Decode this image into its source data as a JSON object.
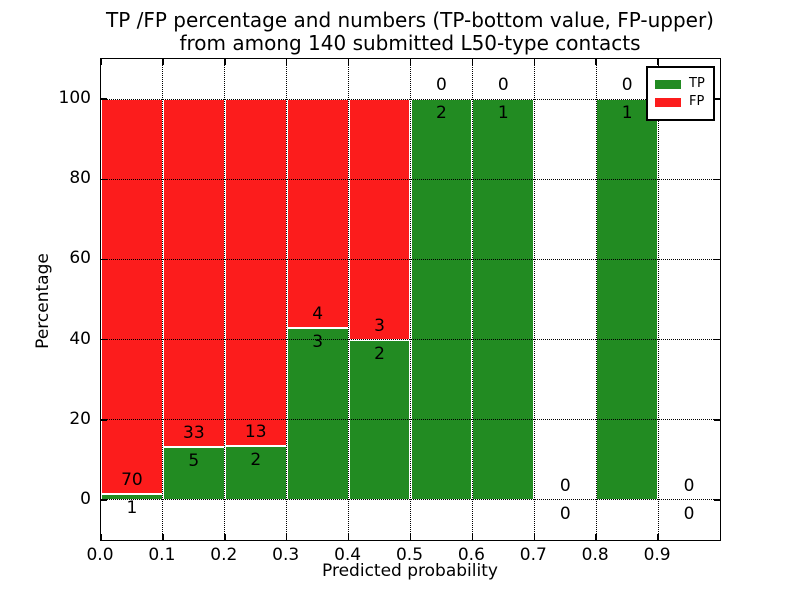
{
  "chart_data": {
    "type": "bar",
    "stacked": true,
    "title_line1": "TP /FP percentage and numbers (TP-bottom value, FP-upper)",
    "title_line2": "from among 140 submitted L50-type contacts",
    "xlabel": "Predicted probability",
    "ylabel": "Percentage",
    "xlim": [
      0.0,
      1.0
    ],
    "ylim": [
      -10,
      110
    ],
    "xticks": [
      "0.0",
      "0.1",
      "0.2",
      "0.3",
      "0.4",
      "0.5",
      "0.6",
      "0.7",
      "0.8",
      "0.9"
    ],
    "yticks": [
      0,
      20,
      40,
      60,
      80,
      100
    ],
    "grid": "dotted",
    "grid_above_bars": true,
    "colors": {
      "tp": "#228b22",
      "fp": "#fc1c1c"
    },
    "legend": {
      "position": "upper-right",
      "entries": [
        {
          "label": "TP",
          "color": "#228b22"
        },
        {
          "label": "FP",
          "color": "#fc1c1c"
        }
      ]
    },
    "bins": [
      {
        "range": [
          0.0,
          0.1
        ],
        "tp": 1,
        "fp": 70,
        "tp_pct": 1.41,
        "bar": true
      },
      {
        "range": [
          0.1,
          0.2
        ],
        "tp": 5,
        "fp": 33,
        "tp_pct": 13.16,
        "bar": true
      },
      {
        "range": [
          0.2,
          0.3
        ],
        "tp": 2,
        "fp": 13,
        "tp_pct": 13.33,
        "bar": true
      },
      {
        "range": [
          0.3,
          0.4
        ],
        "tp": 3,
        "fp": 4,
        "tp_pct": 42.86,
        "bar": true
      },
      {
        "range": [
          0.4,
          0.5
        ],
        "tp": 2,
        "fp": 3,
        "tp_pct": 40.0,
        "bar": true
      },
      {
        "range": [
          0.5,
          0.6
        ],
        "tp": 2,
        "fp": 0,
        "tp_pct": 100.0,
        "bar": true
      },
      {
        "range": [
          0.6,
          0.7
        ],
        "tp": 1,
        "fp": 0,
        "tp_pct": 100.0,
        "bar": true
      },
      {
        "range": [
          0.7,
          0.8
        ],
        "tp": 0,
        "fp": 0,
        "tp_pct": 0.0,
        "bar": false
      },
      {
        "range": [
          0.8,
          0.9
        ],
        "tp": 1,
        "fp": 0,
        "tp_pct": 100.0,
        "bar": true
      },
      {
        "range": [
          0.9,
          1.0
        ],
        "tp": 0,
        "fp": 0,
        "tp_pct": 0.0,
        "bar": false
      }
    ]
  }
}
